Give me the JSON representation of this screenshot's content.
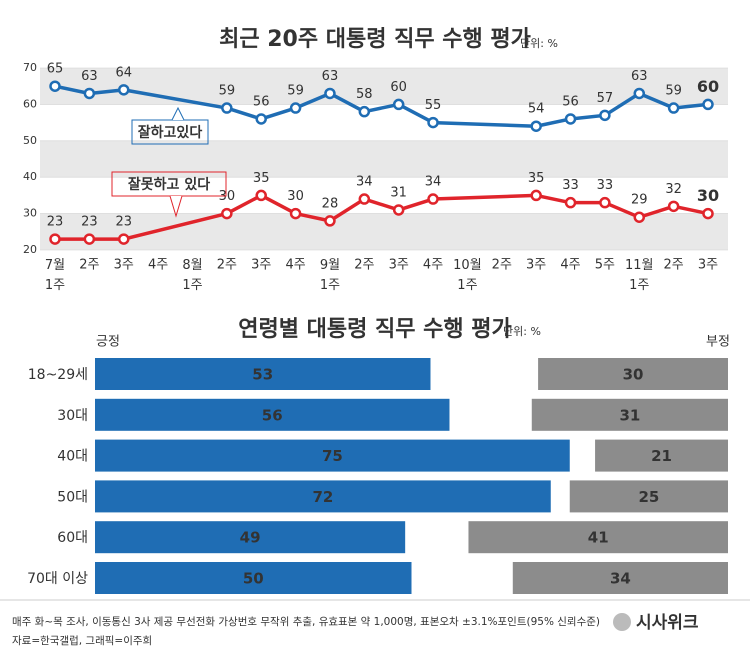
{
  "chart_data": [
    {
      "type": "line",
      "title": "최근 20주 대통령 직무 수행 평가",
      "unit": "단위: %",
      "categories": [
        "7월\n1주",
        "2주",
        "3주",
        "4주",
        "8월\n1주",
        "2주",
        "3주",
        "4주",
        "9월\n1주",
        "2주",
        "3주",
        "4주",
        "10월\n1주",
        "2주",
        "3주",
        "4주",
        "5주",
        "11월\n1주",
        "2주",
        "3주"
      ],
      "series": [
        {
          "name": "잘하고있다",
          "color": "#1f6db4",
          "values": [
            65,
            63,
            64,
            null,
            null,
            59,
            56,
            59,
            63,
            58,
            60,
            55,
            null,
            null,
            54,
            56,
            57,
            63,
            59,
            60
          ]
        },
        {
          "name": "잘못하고 있다",
          "color": "#e0242b",
          "values": [
            23,
            23,
            23,
            null,
            null,
            30,
            35,
            30,
            28,
            34,
            31,
            34,
            null,
            null,
            35,
            33,
            33,
            29,
            32,
            30
          ]
        }
      ],
      "ylim": [
        20,
        70
      ],
      "yticks": [
        20,
        30,
        40,
        50,
        60,
        70
      ],
      "grid": true
    },
    {
      "type": "bar",
      "orientation": "horizontal",
      "title": "연령별 대통령 직무 수행 평가",
      "unit": "단위: %",
      "categories": [
        "18~29세",
        "30대",
        "40대",
        "50대",
        "60대",
        "70대 이상"
      ],
      "series": [
        {
          "name": "긍정",
          "color": "#1f6db4",
          "anchor": "left",
          "values": [
            53,
            56,
            75,
            72,
            49,
            50
          ]
        },
        {
          "name": "부정",
          "color": "#8c8c8c",
          "anchor": "right",
          "values": [
            30,
            31,
            21,
            25,
            41,
            34
          ]
        }
      ],
      "xlim": [
        0,
        100
      ]
    }
  ],
  "notes": [
    "매주 화~목 조사, 이동통신 3사 제공 무선전화 가상번호 무작위 추출, 유효표본 약 1,000명, 표본오차 ±3.1%포인트(95% 신뢰수준)",
    "자료=한국갤럽, 그래픽=이주희"
  ],
  "logo": "시사위크"
}
